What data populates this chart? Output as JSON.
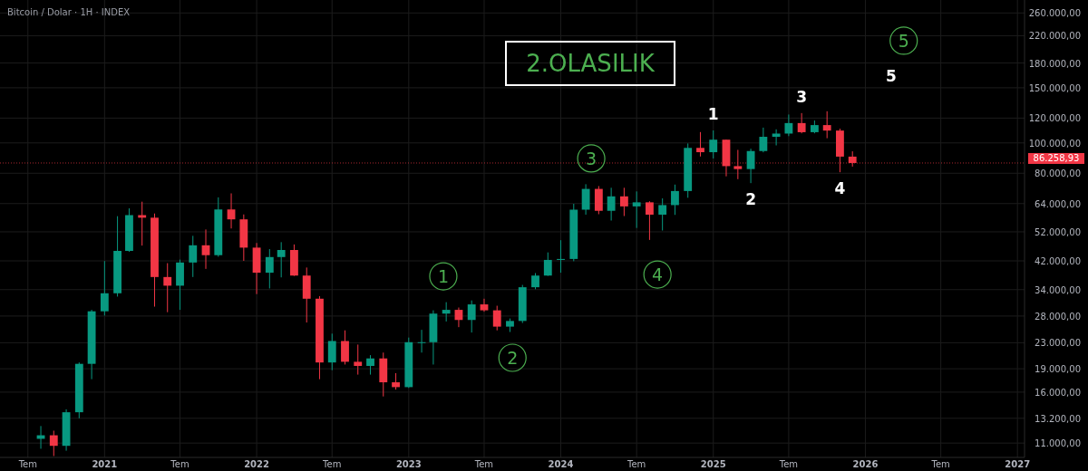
{
  "chart_data": {
    "type": "candlestick",
    "title": "Bitcoin / Dolar · 1H · INDEX",
    "subtitle": "2.OLASILIK",
    "x": [
      "2020-08",
      "2020-09",
      "2020-10",
      "2020-11",
      "2020-12",
      "2021-01",
      "2021-02",
      "2021-03",
      "2021-04",
      "2021-05",
      "2021-06",
      "2021-07",
      "2021-08",
      "2021-09",
      "2021-10",
      "2021-11",
      "2021-12",
      "2022-01",
      "2022-02",
      "2022-03",
      "2022-04",
      "2022-05",
      "2022-06",
      "2022-07",
      "2022-08",
      "2022-09",
      "2022-10",
      "2022-11",
      "2022-12",
      "2023-01",
      "2023-02",
      "2023-03",
      "2023-04",
      "2023-05",
      "2023-06",
      "2023-07",
      "2023-08",
      "2023-09",
      "2023-10",
      "2023-11",
      "2023-12",
      "2024-01",
      "2024-02",
      "2024-03",
      "2024-04",
      "2024-05",
      "2024-06",
      "2024-07",
      "2024-08",
      "2024-09",
      "2024-10",
      "2024-11",
      "2024-12",
      "2025-01",
      "2025-02",
      "2025-03",
      "2025-04",
      "2025-05",
      "2025-06",
      "2025-07",
      "2025-08",
      "2025-09",
      "2025-10",
      "2025-11",
      "2025-12"
    ],
    "ohlc": [
      [
        11350,
        12470,
        10550,
        11650
      ],
      [
        11650,
        12050,
        10000,
        10780
      ],
      [
        10780,
        14100,
        10400,
        13800
      ],
      [
        13800,
        19900,
        13200,
        19700
      ],
      [
        19700,
        29300,
        17600,
        28990
      ],
      [
        28990,
        41950,
        28100,
        33100
      ],
      [
        33100,
        58350,
        32300,
        45200
      ],
      [
        45200,
        61800,
        44900,
        58800
      ],
      [
        58800,
        64900,
        47000,
        57700
      ],
      [
        57700,
        59500,
        30000,
        37300
      ],
      [
        37300,
        41300,
        28800,
        35000
      ],
      [
        35000,
        42400,
        29300,
        41500
      ],
      [
        41500,
        50500,
        37300,
        47100
      ],
      [
        47100,
        52900,
        39600,
        43800
      ],
      [
        43800,
        67000,
        43300,
        61300
      ],
      [
        61300,
        69000,
        53300,
        57000
      ],
      [
        57000,
        59100,
        42000,
        46300
      ],
      [
        46300,
        47900,
        32900,
        38500
      ],
      [
        38500,
        45800,
        34300,
        43200
      ],
      [
        43200,
        48200,
        37200,
        45500
      ],
      [
        45500,
        47400,
        37600,
        37700
      ],
      [
        37700,
        40000,
        26700,
        31800
      ],
      [
        31800,
        32400,
        17600,
        19900
      ],
      [
        19900,
        24600,
        18800,
        23300
      ],
      [
        23300,
        25200,
        19600,
        20000
      ],
      [
        20000,
        22700,
        18200,
        19400
      ],
      [
        19400,
        21000,
        18200,
        20500
      ],
      [
        20500,
        21400,
        15500,
        17200
      ],
      [
        17200,
        18400,
        16300,
        16600
      ],
      [
        16600,
        23900,
        16500,
        23100
      ],
      [
        23100,
        25300,
        21400,
        23100
      ],
      [
        23100,
        29200,
        19600,
        28500
      ],
      [
        28500,
        31000,
        26900,
        29300
      ],
      [
        29300,
        29800,
        25800,
        27200
      ],
      [
        27200,
        31400,
        24800,
        30500
      ],
      [
        30500,
        31800,
        28900,
        29200
      ],
      [
        29200,
        30200,
        25200,
        25900
      ],
      [
        25900,
        27500,
        24900,
        27000
      ],
      [
        27000,
        35200,
        26600,
        34600
      ],
      [
        34600,
        38400,
        34100,
        37700
      ],
      [
        37700,
        44700,
        37600,
        42300
      ],
      [
        42300,
        48900,
        38500,
        42600
      ],
      [
        42600,
        63900,
        41900,
        61200
      ],
      [
        61200,
        73800,
        59000,
        71300
      ],
      [
        71300,
        72800,
        59200,
        60700
      ],
      [
        60700,
        71900,
        56500,
        67500
      ],
      [
        67500,
        71900,
        58400,
        62700
      ],
      [
        62700,
        70000,
        53500,
        64600
      ],
      [
        64600,
        65100,
        49000,
        59000
      ],
      [
        59000,
        66500,
        52500,
        63300
      ],
      [
        63300,
        73600,
        58900,
        70200
      ],
      [
        70200,
        99600,
        66800,
        96400
      ],
      [
        96400,
        108300,
        90500,
        93400
      ],
      [
        93400,
        109600,
        89200,
        102400
      ],
      [
        102400,
        102500,
        78200,
        84300
      ],
      [
        84300,
        95000,
        76600,
        82500
      ],
      [
        82500,
        95800,
        74400,
        94200
      ],
      [
        94200,
        111900,
        93300,
        104600
      ],
      [
        104600,
        110500,
        98200,
        107100
      ],
      [
        107100,
        123200,
        105100,
        115700
      ],
      [
        115700,
        124500,
        107300,
        108200
      ],
      [
        108200,
        117900,
        107300,
        114000
      ],
      [
        114000,
        126200,
        103500,
        109500
      ],
      [
        109500,
        111000,
        80600,
        90400
      ],
      [
        90400,
        94000,
        84000,
        86258.93
      ]
    ],
    "xlim": [
      "2020-04-25",
      "2027-01-18"
    ],
    "ylim": [
      9900,
      286000
    ],
    "log": true,
    "grid": true,
    "xticks": [
      {
        "value": "2020-07-01",
        "label": "Tem"
      },
      {
        "value": "2021-01-01",
        "label": "2021"
      },
      {
        "value": "2021-07-01",
        "label": "Tem"
      },
      {
        "value": "2022-01-01",
        "label": "2022"
      },
      {
        "value": "2022-07-01",
        "label": "Tem"
      },
      {
        "value": "2023-01-01",
        "label": "2023"
      },
      {
        "value": "2023-07-01",
        "label": "Tem"
      },
      {
        "value": "2024-01-01",
        "label": "2024"
      },
      {
        "value": "2024-07-01",
        "label": "Tem"
      },
      {
        "value": "2025-01-01",
        "label": "2025"
      },
      {
        "value": "2025-07-01",
        "label": "Tem"
      },
      {
        "value": "2026-01-01",
        "label": "2026"
      },
      {
        "value": "2026-07-01",
        "label": "Tem"
      },
      {
        "value": "2027-01-01",
        "label": "2027"
      }
    ],
    "yticks": [
      {
        "value": 11000,
        "label": "11.000,00"
      },
      {
        "value": 13200,
        "label": "13.200,00"
      },
      {
        "value": 16000,
        "label": "16.000,00"
      },
      {
        "value": 19000,
        "label": "19.000,00"
      },
      {
        "value": 23000,
        "label": "23.000,00"
      },
      {
        "value": 28000,
        "label": "28.000,00"
      },
      {
        "value": 34000,
        "label": "34.000,00"
      },
      {
        "value": 42000,
        "label": "42.000,00"
      },
      {
        "value": 52000,
        "label": "52.000,00"
      },
      {
        "value": 64000,
        "label": "64.000,00"
      },
      {
        "value": 80000,
        "label": "80.000,00"
      },
      {
        "value": 100000,
        "label": "100.000,00"
      },
      {
        "value": 120000,
        "label": "120.000,00"
      },
      {
        "value": 150000,
        "label": "150.000,00"
      },
      {
        "value": 180000,
        "label": "180.000,00"
      },
      {
        "value": 220000,
        "label": "220.000,00"
      },
      {
        "value": 260000,
        "label": "260.000,00"
      }
    ],
    "ref_lines": [
      {
        "axis": "y",
        "value": 86258.93,
        "label": "86.258,93",
        "color": "#f23645",
        "line_style": "dotted"
      }
    ],
    "annotations": [
      {
        "text": "1",
        "x": "2023-03-25",
        "y": 37500
      },
      {
        "text": "2",
        "x": "2023-09-07",
        "y": 20600
      },
      {
        "text": "3",
        "x": "2024-03-14",
        "y": 89200
      },
      {
        "text": "4",
        "x": "2024-08-20",
        "y": 38000
      },
      {
        "text": "5",
        "x": "2026-04-03",
        "y": 212000
      },
      {
        "text": "1",
        "x": "2025-01",
        "y": 109600
      },
      {
        "text": "2",
        "x": "2025-04",
        "y": 74400
      },
      {
        "text": "3",
        "x": "2025-08",
        "y": 124500
      },
      {
        "text": "4",
        "x": "2025-11",
        "y": 80600
      },
      "5"
    ]
  }
}
